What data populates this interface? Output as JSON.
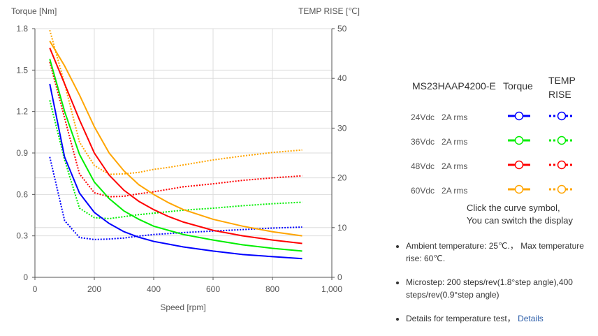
{
  "chart_data": {
    "type": "line",
    "xlabel": "Speed [rpm]",
    "ylabel": "Torque  [Nm]",
    "y2label": "TEMP RISE [℃]",
    "xlim": [
      0,
      1000
    ],
    "ylim": [
      0,
      1.8
    ],
    "y2lim": [
      0,
      50
    ],
    "xticks": [
      "0",
      "200",
      "400",
      "600",
      "800",
      "1,000"
    ],
    "yticks": [
      "0",
      "0.3",
      "0.6",
      "0.9",
      "1.2",
      "1.5",
      "1.8"
    ],
    "y2ticks": [
      "0",
      "10",
      "20",
      "30",
      "40",
      "50"
    ],
    "grid": true,
    "x": [
      50,
      100,
      150,
      200,
      250,
      300,
      350,
      400,
      450,
      500,
      600,
      700,
      800,
      900
    ],
    "series": [
      {
        "name": "24Vdc 2A rms Torque",
        "color": "#0000ff",
        "axis": "left",
        "style": "solid",
        "values": [
          1.4,
          0.87,
          0.61,
          0.47,
          0.39,
          0.33,
          0.29,
          0.26,
          0.24,
          0.22,
          0.19,
          0.165,
          0.15,
          0.135
        ]
      },
      {
        "name": "36Vdc 2A rms Torque",
        "color": "#00ee00",
        "axis": "left",
        "style": "solid",
        "values": [
          1.58,
          1.2,
          0.89,
          0.69,
          0.57,
          0.48,
          0.42,
          0.37,
          0.34,
          0.31,
          0.27,
          0.235,
          0.21,
          0.19
        ]
      },
      {
        "name": "48Vdc 2A rms Torque",
        "color": "#ff0000",
        "axis": "left",
        "style": "solid",
        "values": [
          1.66,
          1.4,
          1.14,
          0.9,
          0.74,
          0.63,
          0.55,
          0.49,
          0.44,
          0.4,
          0.34,
          0.3,
          0.27,
          0.245
        ]
      },
      {
        "name": "60Vdc 2A rms Torque",
        "color": "#ffa500",
        "axis": "left",
        "style": "solid",
        "values": [
          1.71,
          1.53,
          1.32,
          1.09,
          0.9,
          0.77,
          0.67,
          0.6,
          0.54,
          0.49,
          0.42,
          0.37,
          0.33,
          0.3
        ]
      },
      {
        "name": "24Vdc 2A rms TEMP RISE",
        "color": "#0000ff",
        "axis": "right",
        "style": "dotted",
        "values": [
          24.2,
          11.4,
          8,
          7.6,
          7.7,
          7.9,
          8.3,
          8.6,
          8.8,
          9,
          9.3,
          9.6,
          9.9,
          10.1
        ]
      },
      {
        "name": "36Vdc 2A rms TEMP RISE",
        "color": "#00ee00",
        "axis": "right",
        "style": "dotted",
        "values": [
          35.6,
          23.6,
          13.9,
          12,
          11.8,
          12.2,
          12.6,
          12.9,
          13.2,
          13.5,
          13.9,
          14.4,
          14.8,
          15.1
        ]
      },
      {
        "name": "48Vdc 2A rms TEMP RISE",
        "color": "#ff0000",
        "axis": "right",
        "style": "dotted",
        "values": [
          43.3,
          32,
          20.8,
          17,
          16.2,
          16.3,
          16.8,
          17.2,
          17.7,
          18.2,
          18.8,
          19.5,
          20,
          20.4
        ]
      },
      {
        "name": "60Vdc 2A rms TEMP RISE",
        "color": "#ffa500",
        "axis": "right",
        "style": "dotted",
        "values": [
          49.7,
          38.9,
          27.2,
          22.5,
          20.7,
          20.8,
          21.1,
          21.7,
          22.1,
          22.6,
          23.6,
          24.4,
          25.1,
          25.6
        ]
      }
    ]
  },
  "legend": {
    "model": "MS23HAAP4200-E",
    "col_torque": "Torque",
    "col_temp_1": "TEMP",
    "col_temp_2": "RISE",
    "rows": [
      {
        "voltage": "24Vdc",
        "current": "2A rms",
        "color": "#0000ff"
      },
      {
        "voltage": "36Vdc",
        "current": "2A rms",
        "color": "#00ee00"
      },
      {
        "voltage": "48Vdc",
        "current": "2A rms",
        "color": "#ff0000"
      },
      {
        "voltage": "60Vdc",
        "current": "2A rms",
        "color": "#ffa500"
      }
    ],
    "hint_1": "Click the curve symbol,",
    "hint_2": "You can switch the display"
  },
  "notes": {
    "ambient": "Ambient temperature: 25℃.， Max temperature rise: 60℃.",
    "microstep": "Microstep: 200 steps/rev(1.8°step angle),400 steps/rev(0.9°step angle)",
    "details_text": "Details for temperature test，",
    "details_link": "Details"
  }
}
